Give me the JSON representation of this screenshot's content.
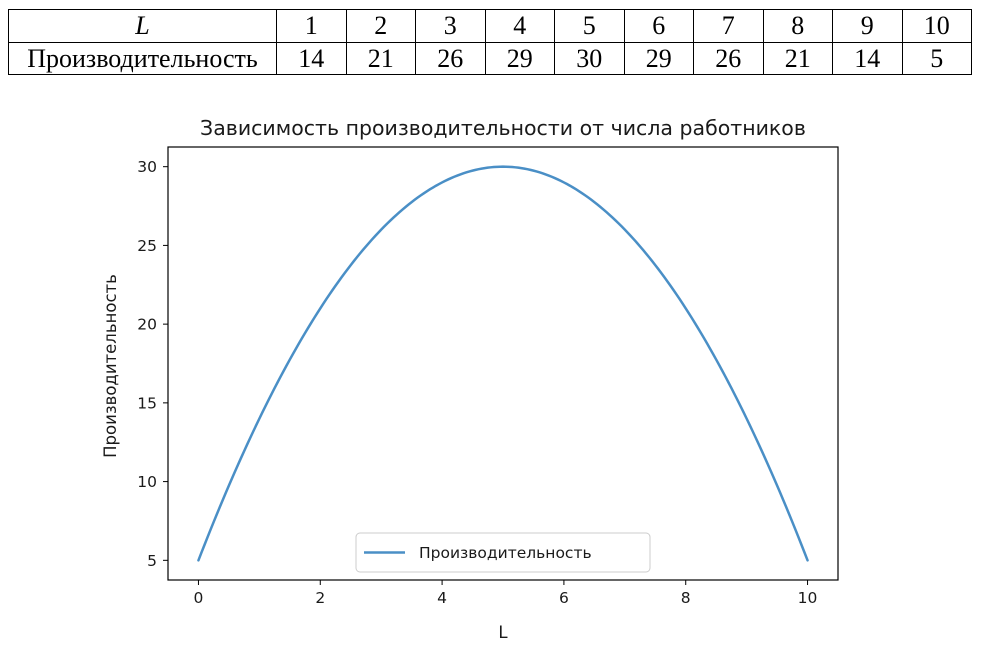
{
  "table": {
    "row_labels": [
      "L",
      "Производительность"
    ],
    "L": [
      "1",
      "2",
      "3",
      "4",
      "5",
      "6",
      "7",
      "8",
      "9",
      "10"
    ],
    "productivity": [
      "14",
      "21",
      "26",
      "29",
      "30",
      "29",
      "26",
      "21",
      "14",
      "5"
    ]
  },
  "chart_data": {
    "type": "line",
    "title": "Зависимость производительности от числа работников",
    "xlabel": "L",
    "ylabel": "Производительность",
    "xlim": [
      -0.5,
      10.5
    ],
    "ylim": [
      3.75,
      31.25
    ],
    "xticks": [
      0,
      2,
      4,
      6,
      8,
      10
    ],
    "yticks": [
      5,
      10,
      15,
      20,
      25,
      30
    ],
    "grid": false,
    "legend_position": "lower center",
    "series": [
      {
        "name": "Производительность",
        "color": "#4a8fc6",
        "x": [
          1,
          2,
          3,
          4,
          5,
          6,
          7,
          8,
          9,
          10
        ],
        "y": [
          14,
          21,
          26,
          29,
          30,
          29,
          26,
          21,
          14,
          5
        ]
      }
    ]
  }
}
